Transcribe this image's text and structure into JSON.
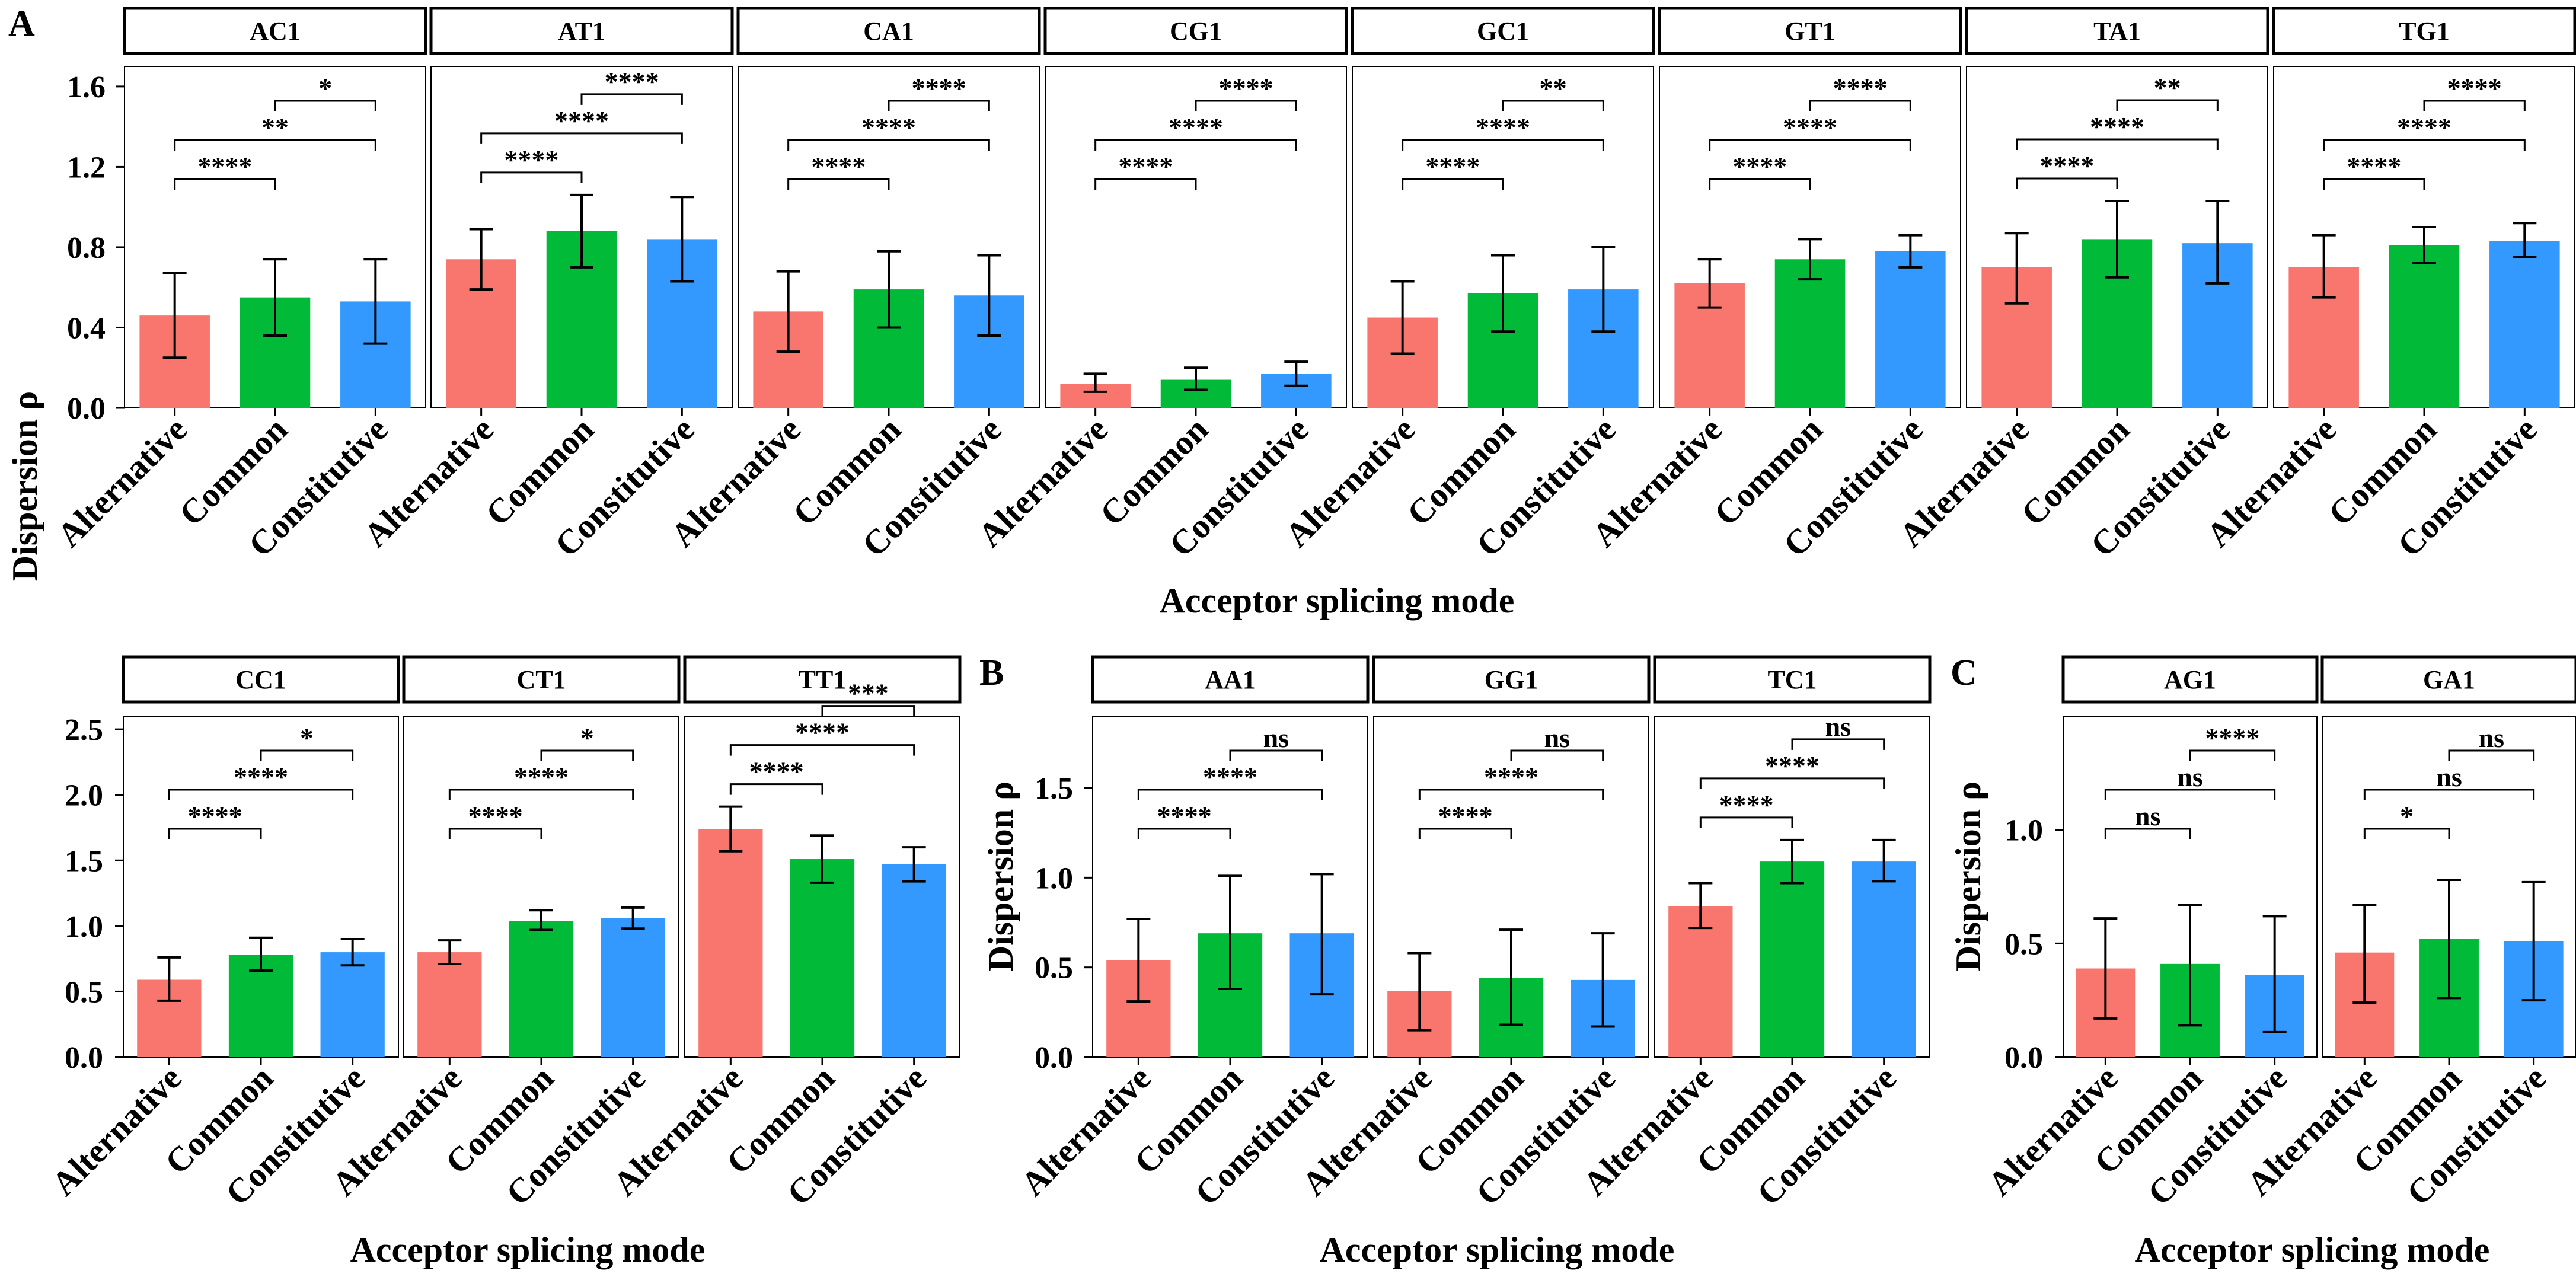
{
  "figure": {
    "x_axis_title": "Acceptor splicing mode",
    "y_axis_title": "Dispersion ρ",
    "categories": [
      "Alternative",
      "Common",
      "Constitutive"
    ],
    "colors": {
      "Alternative": "#F8766D",
      "Common": "#00BA38",
      "Constitutive": "#3399FF"
    },
    "panel_letters": [
      "A",
      "B",
      "C"
    ]
  },
  "chart_data": [
    {
      "group": "A-top",
      "type": "bar",
      "ylim": [
        0,
        1.7
      ],
      "ticks": [
        0.0,
        0.4,
        0.8,
        1.2,
        1.6
      ],
      "tick_labels": [
        "0.0",
        "0.4",
        "0.8",
        "1.2",
        "1.6"
      ],
      "xlabel": "Acceptor splicing mode",
      "ylabel": "Dispersion ρ",
      "facets": [
        {
          "name": "AC1",
          "values": [
            0.46,
            0.55,
            0.53
          ],
          "err_low": [
            0.25,
            0.36,
            0.32
          ],
          "err_high": [
            0.67,
            0.74,
            0.74
          ],
          "sig": [
            [
              "1-2",
              "****"
            ],
            [
              "1-3",
              "**"
            ],
            [
              "2-3",
              "*"
            ]
          ]
        },
        {
          "name": "AT1",
          "values": [
            0.74,
            0.88,
            0.84
          ],
          "err_low": [
            0.59,
            0.7,
            0.63
          ],
          "err_high": [
            0.89,
            1.06,
            1.05
          ],
          "sig": [
            [
              "1-2",
              "****"
            ],
            [
              "1-3",
              "****"
            ],
            [
              "2-3",
              "****"
            ]
          ]
        },
        {
          "name": "CA1",
          "values": [
            0.48,
            0.59,
            0.56
          ],
          "err_low": [
            0.28,
            0.4,
            0.36
          ],
          "err_high": [
            0.68,
            0.78,
            0.76
          ],
          "sig": [
            [
              "1-2",
              "****"
            ],
            [
              "1-3",
              "****"
            ],
            [
              "2-3",
              "****"
            ]
          ]
        },
        {
          "name": "CG1",
          "values": [
            0.12,
            0.14,
            0.17
          ],
          "err_low": [
            0.08,
            0.09,
            0.11
          ],
          "err_high": [
            0.17,
            0.2,
            0.23
          ],
          "sig": [
            [
              "1-2",
              "****"
            ],
            [
              "1-3",
              "****"
            ],
            [
              "2-3",
              "****"
            ]
          ]
        },
        {
          "name": "GC1",
          "values": [
            0.45,
            0.57,
            0.59
          ],
          "err_low": [
            0.27,
            0.38,
            0.38
          ],
          "err_high": [
            0.63,
            0.76,
            0.8
          ],
          "sig": [
            [
              "1-2",
              "****"
            ],
            [
              "1-3",
              "****"
            ],
            [
              "2-3",
              "**"
            ]
          ]
        },
        {
          "name": "GT1",
          "values": [
            0.62,
            0.74,
            0.78
          ],
          "err_low": [
            0.5,
            0.64,
            0.7
          ],
          "err_high": [
            0.74,
            0.84,
            0.86
          ],
          "sig": [
            [
              "1-2",
              "****"
            ],
            [
              "1-3",
              "****"
            ],
            [
              "2-3",
              "****"
            ]
          ]
        },
        {
          "name": "TA1",
          "values": [
            0.7,
            0.84,
            0.82
          ],
          "err_low": [
            0.52,
            0.65,
            0.62
          ],
          "err_high": [
            0.87,
            1.03,
            1.03
          ],
          "sig": [
            [
              "1-2",
              "****"
            ],
            [
              "1-3",
              "****"
            ],
            [
              "2-3",
              "**"
            ]
          ]
        },
        {
          "name": "TG1",
          "values": [
            0.7,
            0.81,
            0.83
          ],
          "err_low": [
            0.55,
            0.72,
            0.75
          ],
          "err_high": [
            0.86,
            0.9,
            0.92
          ],
          "sig": [
            [
              "1-2",
              "****"
            ],
            [
              "1-3",
              "****"
            ],
            [
              "2-3",
              "****"
            ]
          ]
        }
      ]
    },
    {
      "group": "A-bottom",
      "type": "bar",
      "ylim": [
        0,
        2.6
      ],
      "ticks": [
        0.0,
        0.5,
        1.0,
        1.5,
        2.0,
        2.5
      ],
      "tick_labels": [
        "0.0",
        "0.5",
        "1.0",
        "1.5",
        "2.0",
        "2.5"
      ],
      "xlabel": "Acceptor splicing mode",
      "ylabel": "Dispersion ρ",
      "facets": [
        {
          "name": "CC1",
          "values": [
            0.59,
            0.78,
            0.8
          ],
          "err_low": [
            0.43,
            0.66,
            0.7
          ],
          "err_high": [
            0.76,
            0.91,
            0.9
          ],
          "sig": [
            [
              "1-2",
              "****"
            ],
            [
              "1-3",
              "****"
            ],
            [
              "2-3",
              "*"
            ]
          ]
        },
        {
          "name": "CT1",
          "values": [
            0.8,
            1.04,
            1.06
          ],
          "err_low": [
            0.71,
            0.97,
            0.98
          ],
          "err_high": [
            0.89,
            1.12,
            1.14
          ],
          "sig": [
            [
              "1-2",
              "****"
            ],
            [
              "1-3",
              "****"
            ],
            [
              "2-3",
              "*"
            ]
          ]
        },
        {
          "name": "TT1",
          "values": [
            1.74,
            1.51,
            1.47
          ],
          "err_low": [
            1.57,
            1.33,
            1.34
          ],
          "err_high": [
            1.91,
            1.69,
            1.6
          ],
          "sig": [
            [
              "1-2",
              "****"
            ],
            [
              "1-3",
              "****"
            ],
            [
              "2-3",
              "***"
            ]
          ]
        }
      ]
    },
    {
      "group": "B",
      "type": "bar",
      "ylim": [
        0,
        1.9
      ],
      "ticks": [
        0.0,
        0.5,
        1.0,
        1.5
      ],
      "tick_labels": [
        "0.0",
        "0.5",
        "1.0",
        "1.5"
      ],
      "xlabel": "Acceptor splicing mode",
      "ylabel": "Dispersion ρ",
      "facets": [
        {
          "name": "AA1",
          "values": [
            0.54,
            0.69,
            0.69
          ],
          "err_low": [
            0.31,
            0.38,
            0.35
          ],
          "err_high": [
            0.77,
            1.01,
            1.02
          ],
          "sig": [
            [
              "1-2",
              "****"
            ],
            [
              "1-3",
              "****"
            ],
            [
              "2-3",
              "ns"
            ]
          ]
        },
        {
          "name": "GG1",
          "values": [
            0.37,
            0.44,
            0.43
          ],
          "err_low": [
            0.15,
            0.18,
            0.17
          ],
          "err_high": [
            0.58,
            0.71,
            0.69
          ],
          "sig": [
            [
              "1-2",
              "****"
            ],
            [
              "1-3",
              "****"
            ],
            [
              "2-3",
              "ns"
            ]
          ]
        },
        {
          "name": "TC1",
          "values": [
            0.84,
            1.09,
            1.09
          ],
          "err_low": [
            0.72,
            0.97,
            0.98
          ],
          "err_high": [
            0.97,
            1.21,
            1.21
          ],
          "sig": [
            [
              "1-2",
              "****"
            ],
            [
              "1-3",
              "****"
            ],
            [
              "2-3",
              "ns"
            ]
          ]
        }
      ]
    },
    {
      "group": "C",
      "type": "bar",
      "ylim": [
        0,
        1.5
      ],
      "ticks": [
        0.0,
        0.5,
        1.0
      ],
      "tick_labels": [
        "0.0",
        "0.5",
        "1.0"
      ],
      "xlabel": "Acceptor splicing mode",
      "ylabel": "Dispersion ρ",
      "facets": [
        {
          "name": "AG1",
          "values": [
            0.39,
            0.41,
            0.36
          ],
          "err_low": [
            0.17,
            0.14,
            0.11
          ],
          "err_high": [
            0.61,
            0.67,
            0.62
          ],
          "sig": [
            [
              "1-2",
              "ns"
            ],
            [
              "1-3",
              "ns"
            ],
            [
              "2-3",
              "****"
            ]
          ]
        },
        {
          "name": "GA1",
          "values": [
            0.46,
            0.52,
            0.51
          ],
          "err_low": [
            0.24,
            0.26,
            0.25
          ],
          "err_high": [
            0.67,
            0.78,
            0.77
          ],
          "sig": [
            [
              "1-2",
              "*"
            ],
            [
              "1-3",
              "ns"
            ],
            [
              "2-3",
              "ns"
            ]
          ]
        }
      ]
    }
  ]
}
